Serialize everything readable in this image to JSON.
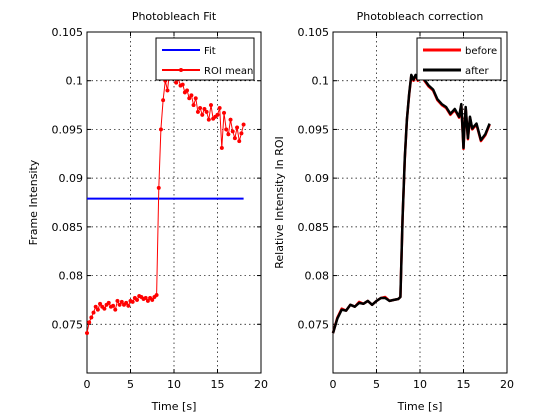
{
  "chart_data": [
    {
      "type": "line",
      "title": "Photobleach Fit",
      "xlabel": "Time [s]",
      "ylabel": "Frame Intensity",
      "xlim": [
        0,
        20
      ],
      "ylim": [
        0.07,
        0.105
      ],
      "xticks": [
        "0",
        "5",
        "10",
        "15",
        "20"
      ],
      "yticks": [
        "0.075",
        "0.08",
        "0.085",
        "0.09",
        "0.095",
        "0.1",
        "0.105"
      ],
      "grid": true,
      "legend_position": "top-right",
      "series": [
        {
          "name": "Fit",
          "color": "#0000ff",
          "marker": "none",
          "x": [
            0,
            18
          ],
          "y": [
            0.0879,
            0.0879
          ]
        },
        {
          "name": "ROI mean",
          "color": "#ff0000",
          "marker": "dot",
          "x": [
            0,
            0.25,
            0.5,
            0.75,
            1.0,
            1.25,
            1.5,
            1.75,
            2.0,
            2.25,
            2.5,
            2.75,
            3.0,
            3.25,
            3.5,
            3.75,
            4.0,
            4.25,
            4.5,
            4.75,
            5.0,
            5.25,
            5.5,
            5.75,
            6.0,
            6.25,
            6.5,
            6.75,
            7.0,
            7.25,
            7.5,
            7.75,
            8.0,
            8.25,
            8.5,
            8.75,
            9.0,
            9.25,
            9.5,
            9.75,
            10.0,
            10.25,
            10.5,
            10.75,
            11.0,
            11.25,
            11.5,
            11.75,
            12.0,
            12.25,
            12.5,
            12.75,
            13.0,
            13.25,
            13.5,
            13.75,
            14.0,
            14.25,
            14.5,
            14.75,
            15.0,
            15.25,
            15.5,
            15.75,
            16.0,
            16.25,
            16.5,
            16.75,
            17.0,
            17.25,
            17.5,
            17.75,
            18.0
          ],
          "y": [
            0.0741,
            0.0752,
            0.0757,
            0.0762,
            0.0768,
            0.0765,
            0.0771,
            0.0768,
            0.0766,
            0.077,
            0.0772,
            0.0768,
            0.0769,
            0.0765,
            0.0774,
            0.077,
            0.0773,
            0.077,
            0.0772,
            0.0769,
            0.0774,
            0.0773,
            0.0777,
            0.0775,
            0.0779,
            0.0778,
            0.0776,
            0.0777,
            0.0774,
            0.0777,
            0.0775,
            0.0778,
            0.078,
            0.089,
            0.095,
            0.098,
            0.1,
            0.099,
            0.101,
            0.1005,
            0.1008,
            0.0998,
            0.1002,
            0.0995,
            0.0996,
            0.0988,
            0.099,
            0.0982,
            0.0985,
            0.0975,
            0.0982,
            0.0968,
            0.0972,
            0.0965,
            0.0971,
            0.0968,
            0.096,
            0.0975,
            0.0961,
            0.0963,
            0.0965,
            0.0972,
            0.0931,
            0.0967,
            0.095,
            0.0945,
            0.096,
            0.0948,
            0.0941,
            0.0952,
            0.0938,
            0.0946,
            0.0955
          ]
        }
      ]
    },
    {
      "type": "line",
      "title": "Photobleach correction",
      "xlabel": "Time [s]",
      "ylabel": "Relative Intensity In ROI",
      "xlim": [
        0,
        20
      ],
      "ylim": [
        0.07,
        0.105
      ],
      "xticks": [
        "0",
        "5",
        "10",
        "15",
        "20"
      ],
      "yticks": [
        "0.075",
        "0.08",
        "0.085",
        "0.09",
        "0.095",
        "0.1",
        "0.105"
      ],
      "grid": true,
      "legend_position": "top-right",
      "series": [
        {
          "name": "before",
          "color": "#ff0000",
          "marker": "none",
          "x": [
            0,
            0.5,
            1.0,
            1.5,
            2.0,
            2.5,
            3.0,
            3.5,
            4.0,
            4.5,
            5.0,
            5.5,
            6.0,
            6.5,
            7.0,
            7.5,
            7.75,
            8.0,
            8.25,
            8.5,
            8.75,
            9.0,
            9.25,
            9.5,
            9.75,
            10.0,
            10.5,
            11.0,
            11.5,
            12.0,
            12.5,
            13.0,
            13.5,
            14.0,
            14.5,
            14.75,
            15.0,
            15.1,
            15.25,
            15.5,
            15.75,
            16.0,
            16.5,
            17.0,
            17.5,
            18.0
          ],
          "y": [
            0.0741,
            0.0757,
            0.0766,
            0.0764,
            0.077,
            0.0768,
            0.0773,
            0.0771,
            0.0774,
            0.077,
            0.0774,
            0.0777,
            0.0778,
            0.0774,
            0.0775,
            0.0776,
            0.0778,
            0.086,
            0.092,
            0.096,
            0.0985,
            0.1005,
            0.1,
            0.1005,
            0.1,
            0.1008,
            0.1,
            0.0994,
            0.099,
            0.098,
            0.0975,
            0.0972,
            0.0965,
            0.097,
            0.0962,
            0.0975,
            0.093,
            0.095,
            0.0972,
            0.094,
            0.0962,
            0.095,
            0.0955,
            0.0938,
            0.0944,
            0.0955
          ]
        },
        {
          "name": "after",
          "color": "#000000",
          "marker": "none",
          "x": [
            0,
            0.5,
            1.0,
            1.5,
            2.0,
            2.5,
            3.0,
            3.5,
            4.0,
            4.5,
            5.0,
            5.5,
            6.0,
            6.5,
            7.0,
            7.5,
            7.75,
            8.0,
            8.25,
            8.5,
            8.75,
            9.0,
            9.25,
            9.5,
            9.75,
            10.0,
            10.5,
            11.0,
            11.5,
            12.0,
            12.5,
            13.0,
            13.5,
            14.0,
            14.5,
            14.75,
            15.0,
            15.1,
            15.25,
            15.5,
            15.75,
            16.0,
            16.5,
            17.0,
            17.5,
            18.0
          ],
          "y": [
            0.0741,
            0.0756,
            0.0765,
            0.0764,
            0.077,
            0.0768,
            0.0772,
            0.0771,
            0.0774,
            0.077,
            0.0774,
            0.0777,
            0.0777,
            0.0774,
            0.0775,
            0.0776,
            0.0778,
            0.086,
            0.0921,
            0.096,
            0.0986,
            0.1006,
            0.1001,
            0.1006,
            0.1001,
            0.1009,
            0.1001,
            0.0995,
            0.0991,
            0.0981,
            0.0976,
            0.0973,
            0.0966,
            0.0971,
            0.0963,
            0.0976,
            0.0931,
            0.0951,
            0.0973,
            0.0941,
            0.0963,
            0.0951,
            0.0956,
            0.0939,
            0.0945,
            0.0956
          ]
        }
      ]
    }
  ]
}
